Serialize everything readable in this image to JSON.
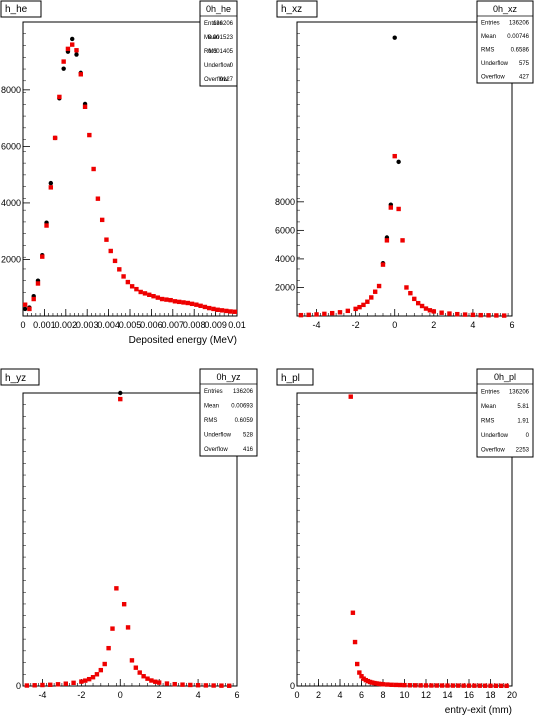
{
  "chart_data": [
    {
      "type": "scatter",
      "histogram_name": "h_he",
      "xlabel": "Deposited energy (MeV)",
      "xlim": [
        0,
        0.01
      ],
      "ylim": [
        0,
        10400
      ],
      "x_ticks": [
        "0",
        "0.001",
        "0.002",
        "0.003",
        "0.004",
        "0.005",
        "0.006",
        "0.007",
        "0.008",
        "0.009",
        "0.01"
      ],
      "y_ticks": [
        "2000",
        "4000",
        "6000",
        "8000"
      ],
      "y_tick_values": [
        2000,
        4000,
        6000,
        8000
      ],
      "stats": {
        "title": "0h_he",
        "rows": [
          {
            "label": "Entries",
            "value": "136206"
          },
          {
            "label": "Mean",
            "value": "0.001523"
          },
          {
            "label": "RMS",
            "value": "0.001405"
          },
          {
            "label": "Underflow",
            "value": "0"
          },
          {
            "label": "Overflow",
            "value": "9127"
          }
        ]
      },
      "series": [
        {
          "color": "#000000",
          "x": [
            0.0001,
            0.0003,
            0.0005,
            0.0007,
            0.0009,
            0.0011,
            0.0013,
            0.0015,
            0.0017,
            0.0019,
            0.0021,
            0.0023,
            0.0025,
            0.0027,
            0.0029
          ],
          "y": [
            250,
            300,
            700,
            1250,
            2150,
            3300,
            4700,
            6300,
            7700,
            8750,
            9350,
            9800,
            9250,
            8600,
            7500
          ]
        },
        {
          "color": "#ee0000",
          "x": [
            0.0001,
            0.0003,
            0.0005,
            0.0007,
            0.0009,
            0.0011,
            0.0013,
            0.0015,
            0.0017,
            0.0019,
            0.0021,
            0.0023,
            0.0025,
            0.0027,
            0.0029,
            0.0031,
            0.0033,
            0.0035,
            0.0037,
            0.0039,
            0.0041,
            0.0043,
            0.0045,
            0.0047,
            0.0049,
            0.0051,
            0.0053,
            0.0055,
            0.0057,
            0.0059,
            0.0061,
            0.0063,
            0.0065,
            0.0067,
            0.0069,
            0.0071,
            0.0073,
            0.0075,
            0.0077,
            0.0079,
            0.0081,
            0.0083,
            0.0085,
            0.0087,
            0.0089,
            0.0091,
            0.0093,
            0.0095,
            0.0097,
            0.0099
          ],
          "y": [
            400,
            250,
            600,
            1150,
            2100,
            3200,
            4550,
            6300,
            7750,
            9000,
            9450,
            9600,
            9400,
            8550,
            7400,
            6400,
            5200,
            4150,
            3400,
            2700,
            2300,
            1950,
            1650,
            1400,
            1200,
            1050,
            950,
            850,
            800,
            750,
            700,
            650,
            600,
            580,
            560,
            520,
            500,
            480,
            460,
            430,
            400,
            360,
            320,
            280,
            250,
            220,
            200,
            180,
            160,
            150
          ]
        }
      ]
    },
    {
      "type": "scatter",
      "histogram_name": "h_xz",
      "xlim": [
        -5,
        6
      ],
      "ylim": [
        0,
        20600
      ],
      "x_ticks": [
        "-4",
        "-2",
        "0",
        "2",
        "4",
        "6"
      ],
      "x_tick_values": [
        -4,
        -2,
        0,
        2,
        4,
        6
      ],
      "y_ticks": [
        "2000",
        "4000",
        "6000",
        "8000"
      ],
      "y_tick_values": [
        2000,
        4000,
        6000,
        8000
      ],
      "stats": {
        "title": "0h_xz",
        "rows": [
          {
            "label": "Entries",
            "value": "136206"
          },
          {
            "label": "Mean",
            "value": "0.00746"
          },
          {
            "label": "RMS",
            "value": "0.6586"
          },
          {
            "label": "Underflow",
            "value": "575"
          },
          {
            "label": "Overflow",
            "value": "427"
          }
        ]
      },
      "series": [
        {
          "color": "#000000",
          "x": [
            -0.6,
            -0.4,
            -0.2,
            0.0,
            0.2
          ],
          "y": [
            3700,
            5500,
            7800,
            19500,
            10800
          ]
        },
        {
          "color": "#ee0000",
          "x": [
            -4.8,
            -4.4,
            -4.0,
            -3.6,
            -3.2,
            -2.8,
            -2.4,
            -2.0,
            -1.8,
            -1.6,
            -1.4,
            -1.2,
            -1.0,
            -0.8,
            -0.6,
            -0.4,
            -0.2,
            0.0,
            0.2,
            0.4,
            0.6,
            0.8,
            1.0,
            1.2,
            1.4,
            1.6,
            1.8,
            2.0,
            2.4,
            2.8,
            3.2,
            3.6,
            4.0,
            4.4,
            4.8,
            5.2,
            5.6
          ],
          "y": [
            60,
            80,
            110,
            150,
            200,
            260,
            360,
            500,
            620,
            780,
            1000,
            1300,
            1700,
            2100,
            3600,
            5300,
            7600,
            11200,
            7500,
            5300,
            2000,
            1600,
            1200,
            900,
            700,
            520,
            400,
            320,
            230,
            170,
            130,
            100,
            80,
            60,
            50,
            40,
            30
          ]
        }
      ]
    },
    {
      "type": "scatter",
      "histogram_name": "h_yz",
      "xlim": [
        -5,
        6
      ],
      "ylim": [
        0,
        24000
      ],
      "x_ticks": [
        "-4",
        "-2",
        "0",
        "2",
        "4",
        "6"
      ],
      "x_tick_values": [
        -4,
        -2,
        0,
        2,
        4,
        6
      ],
      "y_ticks": [
        "0"
      ],
      "y_tick_values": [
        0
      ],
      "stats": {
        "title": "0h_yz",
        "rows": [
          {
            "label": "Entries",
            "value": "136206"
          },
          {
            "label": "Mean",
            "value": "0.00693"
          },
          {
            "label": "RMS",
            "value": "0.6059"
          },
          {
            "label": "Underflow",
            "value": "528"
          },
          {
            "label": "Overflow",
            "value": "416"
          }
        ]
      },
      "series": [
        {
          "color": "#000000",
          "x": [
            0.0
          ],
          "y": [
            24000
          ]
        },
        {
          "color": "#ee0000",
          "x": [
            -4.8,
            -4.4,
            -4.0,
            -3.6,
            -3.2,
            -2.8,
            -2.4,
            -2.0,
            -1.8,
            -1.6,
            -1.4,
            -1.2,
            -1.0,
            -0.8,
            -0.6,
            -0.4,
            -0.2,
            0.0,
            0.2,
            0.4,
            0.6,
            0.8,
            1.0,
            1.2,
            1.4,
            1.6,
            1.8,
            2.0,
            2.4,
            2.8,
            3.2,
            3.6,
            4.0,
            4.4,
            4.8,
            5.2,
            5.6
          ],
          "y": [
            40,
            60,
            80,
            100,
            140,
            190,
            260,
            360,
            440,
            560,
            720,
            960,
            1300,
            1800,
            3100,
            4700,
            8000,
            23500,
            6700,
            4800,
            2100,
            1500,
            1100,
            800,
            600,
            450,
            350,
            280,
            200,
            150,
            110,
            85,
            65,
            50,
            40,
            30,
            20
          ]
        }
      ]
    },
    {
      "type": "scatter",
      "histogram_name": "h_pl",
      "xlabel": "entry-exit (mm)",
      "xlim": [
        0,
        20
      ],
      "ylim": [
        0,
        24000
      ],
      "x_ticks": [
        "0",
        "2",
        "4",
        "6",
        "8",
        "10",
        "12",
        "14",
        "16",
        "18",
        "20"
      ],
      "x_tick_values": [
        0,
        2,
        4,
        6,
        8,
        10,
        12,
        14,
        16,
        18,
        20
      ],
      "y_ticks": [
        "0"
      ],
      "y_tick_values": [
        0
      ],
      "stats": {
        "title": "0h_pl",
        "rows": [
          {
            "label": "Entries",
            "value": "136206"
          },
          {
            "label": "Mean",
            "value": "5.81"
          },
          {
            "label": "RMS",
            "value": "1.91"
          },
          {
            "label": "Underflow",
            "value": "0"
          },
          {
            "label": "Overflow",
            "value": "2253"
          }
        ]
      },
      "series": [
        {
          "color": "#ee0000",
          "x": [
            5.0,
            5.2,
            5.4,
            5.6,
            5.8,
            6.0,
            6.2,
            6.4,
            6.6,
            6.8,
            7.0,
            7.2,
            7.4,
            7.6,
            7.8,
            8.0,
            8.4,
            8.8,
            9.2,
            9.6,
            10.0,
            10.5,
            11.0,
            11.5,
            12.0,
            12.5,
            13.0,
            13.5,
            14.0,
            14.5,
            15.0,
            15.5,
            16.0,
            16.5,
            17.0,
            17.5,
            18.0,
            18.5,
            19.0,
            19.5
          ],
          "y": [
            23700,
            6000,
            3600,
            1800,
            1100,
            800,
            600,
            480,
            400,
            330,
            280,
            240,
            210,
            180,
            160,
            140,
            120,
            100,
            90,
            80,
            70,
            60,
            55,
            50,
            45,
            42,
            40,
            38,
            36,
            34,
            32,
            30,
            28,
            26,
            24,
            22,
            20,
            18,
            16,
            14
          ]
        }
      ]
    }
  ]
}
